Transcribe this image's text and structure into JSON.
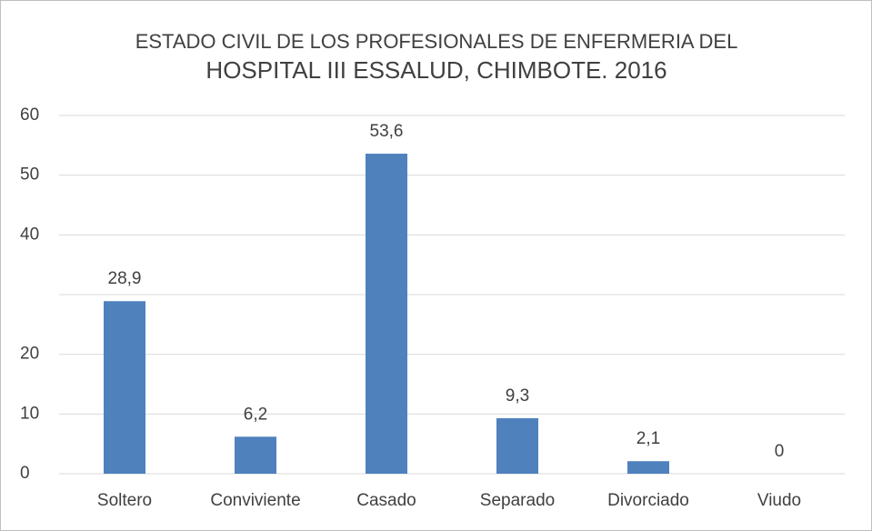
{
  "chart_data": {
    "type": "bar",
    "title": [
      "ESTADO CIVIL DE LOS PROFESIONALES DE ENFERMERIA DEL",
      "HOSPITAL III ESSALUD, CHIMBOTE. 2016"
    ],
    "categories": [
      "Soltero",
      "Conviviente",
      "Casado",
      "Separado",
      "Divorciado",
      "Viudo"
    ],
    "values": [
      28.9,
      6.2,
      53.6,
      9.3,
      2.1,
      0
    ],
    "value_labels": [
      "28,9",
      "6,2",
      "53,6",
      "9,3",
      "2,1",
      "0"
    ],
    "color": "#4f81bd",
    "ylim": [
      0,
      60
    ],
    "yticks": [
      0,
      10,
      20,
      40,
      50,
      60
    ],
    "ygrid": [
      0,
      10,
      20,
      30,
      40,
      50,
      60
    ],
    "grid": true
  }
}
